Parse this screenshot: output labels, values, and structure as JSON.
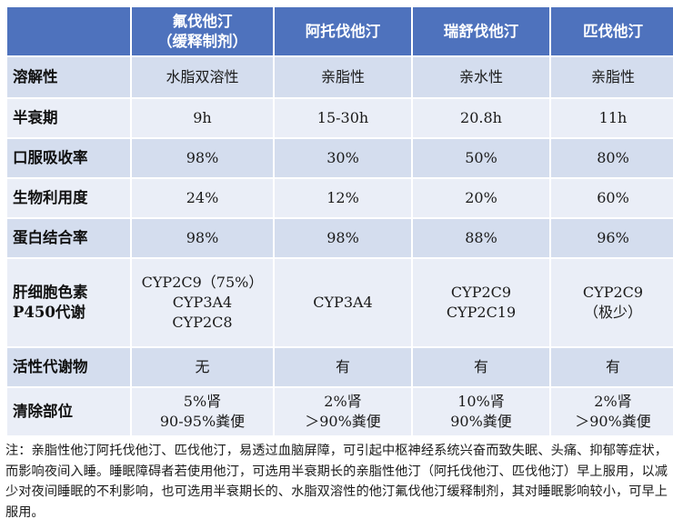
{
  "table": {
    "columns": [
      {
        "lines": [
          "氟伐他汀",
          "（缓释制剂）"
        ]
      },
      {
        "lines": [
          "阿托伐他汀"
        ]
      },
      {
        "lines": [
          "瑞舒伐他汀"
        ]
      },
      {
        "lines": [
          "匹伐他汀"
        ]
      }
    ],
    "rows": [
      {
        "label": [
          "溶解性"
        ],
        "cells": [
          [
            "水脂双溶性"
          ],
          [
            "亲脂性"
          ],
          [
            "亲水性"
          ],
          [
            "亲脂性"
          ]
        ]
      },
      {
        "label": [
          "半衰期"
        ],
        "cells": [
          [
            "9h"
          ],
          [
            "15-30h"
          ],
          [
            "20.8h"
          ],
          [
            "11h"
          ]
        ]
      },
      {
        "label": [
          "口服吸收率"
        ],
        "cells": [
          [
            "98%"
          ],
          [
            "30%"
          ],
          [
            "50%"
          ],
          [
            "80%"
          ]
        ]
      },
      {
        "label": [
          "生物利用度"
        ],
        "cells": [
          [
            "24%"
          ],
          [
            "12%"
          ],
          [
            "20%"
          ],
          [
            "60%"
          ]
        ]
      },
      {
        "label": [
          "蛋白结合率"
        ],
        "cells": [
          [
            "98%"
          ],
          [
            "98%"
          ],
          [
            "88%"
          ],
          [
            "96%"
          ]
        ]
      },
      {
        "label": [
          "肝细胞色素",
          "P450代谢"
        ],
        "cells": [
          [
            "CYP2C9（75%）",
            "CYP3A4",
            "CYP2C8"
          ],
          [
            "CYP3A4"
          ],
          [
            "CYP2C9",
            "CYP2C19"
          ],
          [
            "CYP2C9",
            "（极少）"
          ]
        ]
      },
      {
        "label": [
          "活性代谢物"
        ],
        "cells": [
          [
            "无"
          ],
          [
            "有"
          ],
          [
            "有"
          ],
          [
            "有"
          ]
        ]
      },
      {
        "label": [
          "清除部位"
        ],
        "cells": [
          [
            "5%肾",
            "90-95%粪便"
          ],
          [
            "2%肾",
            "＞90%粪便"
          ],
          [
            "10%肾",
            "90%粪便"
          ],
          [
            "2%肾",
            "＞90%粪便"
          ]
        ]
      }
    ]
  },
  "note": "注：亲脂性他汀阿托伐他汀、匹伐他汀，易透过血脑屏障，可引起中枢神经系统兴奋而致失眠、头痛、抑郁等症状，而影响夜间入睡。睡眠障碍者若使用他汀，可选用半衰期长的亲脂性他汀（阿托伐他汀、匹伐他汀）早上服用，以减少对夜间睡眠的不利影响，也可选用半衰期长的、水脂双溶性的他汀氟伐他汀缓释制剂，其对睡眠影响较小，可早上服用。"
}
